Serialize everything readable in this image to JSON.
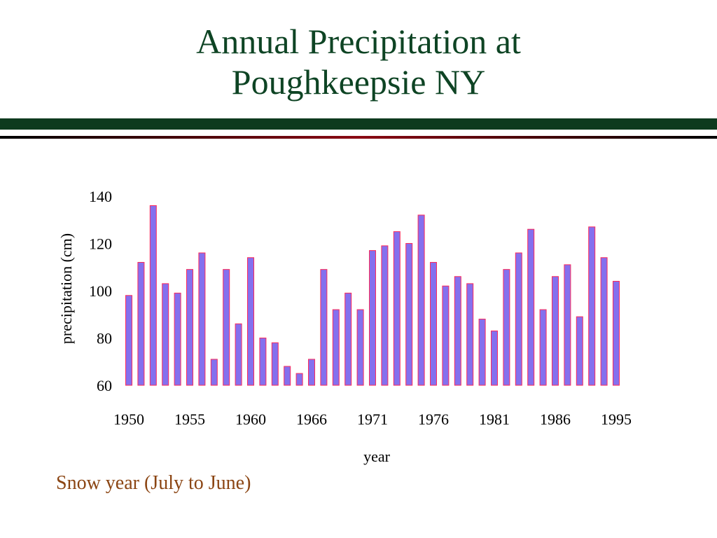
{
  "slide": {
    "title_line1": "Annual Precipitation at",
    "title_line2": "Poughkeepsie NY",
    "footnote": "Snow year (July to June)"
  },
  "colors": {
    "title": "#0e4424",
    "bar_fill": "#8470ee",
    "bar_edge": "#ff2a5a",
    "footnote": "#8b4513",
    "rule_dark": "#0e3a1e",
    "rule_red": "#8b0a14"
  },
  "chart_data": {
    "type": "bar",
    "title": "",
    "xlabel": "year",
    "ylabel": "precipitation (cm)",
    "ylim": [
      60,
      140
    ],
    "y_ticks": [
      60,
      80,
      100,
      120,
      140
    ],
    "x_tick_labels": [
      "1950",
      "1955",
      "1960",
      "1966",
      "1971",
      "1976",
      "1981",
      "1986",
      "1995"
    ],
    "x_tick_indices": [
      0,
      5,
      10,
      15,
      20,
      25,
      30,
      35,
      40
    ],
    "grid": false,
    "values": [
      98,
      112,
      136,
      103,
      99,
      109,
      116,
      71,
      109,
      86,
      114,
      80,
      78,
      68,
      65,
      71,
      109,
      92,
      99,
      92,
      117,
      119,
      125,
      120,
      132,
      112,
      102,
      106,
      103,
      88,
      83,
      109,
      116,
      126,
      92,
      106,
      111,
      89,
      127,
      114,
      104
    ]
  }
}
